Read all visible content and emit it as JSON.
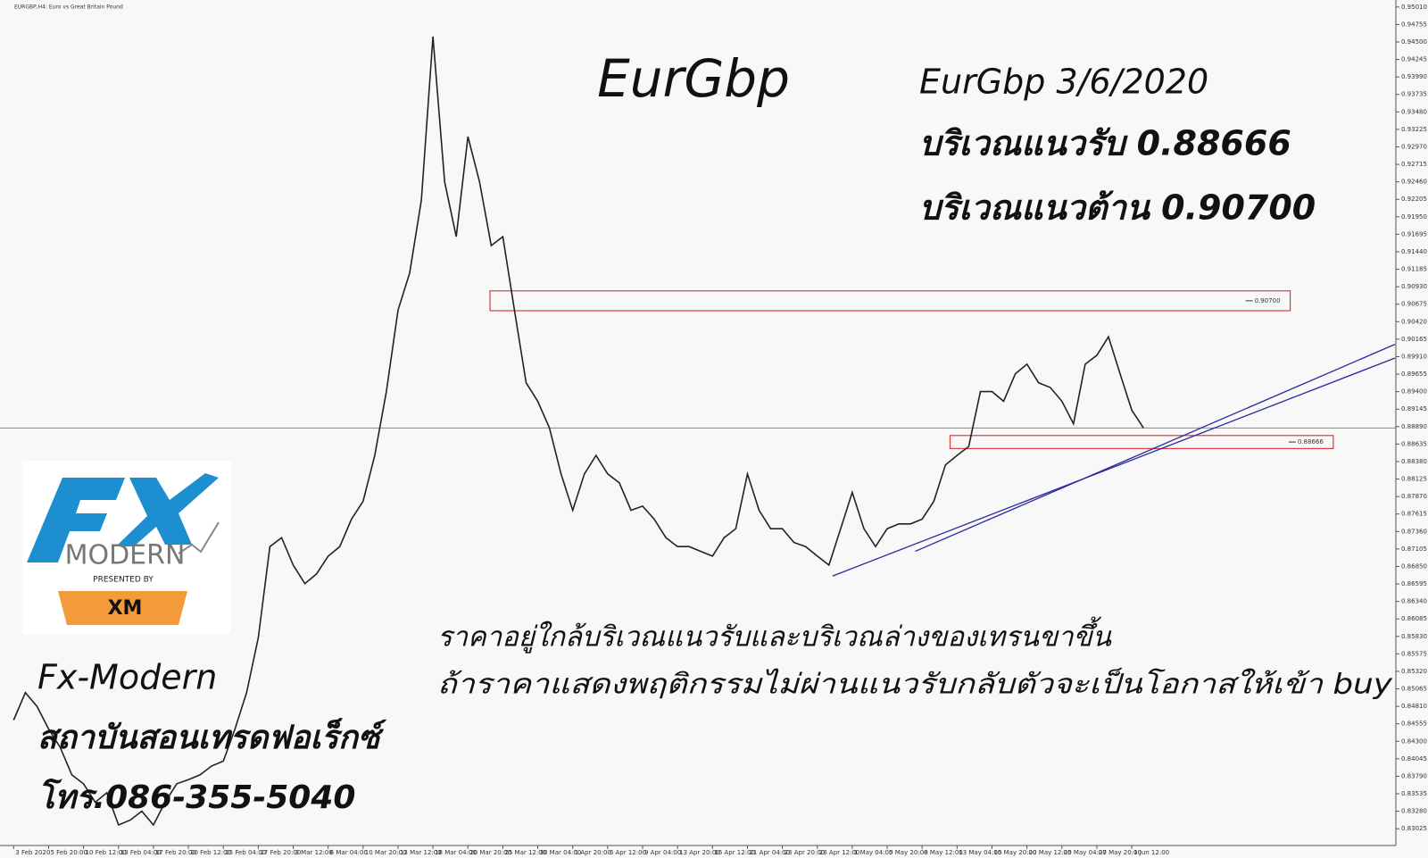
{
  "chart_data": {
    "type": "line",
    "window_caption": "EURGBP,H4: Euro vs Great Britain Pound",
    "title": "EurGbp",
    "info_lines": [
      "EurGbp 3/6/2020",
      "บริเวณแนวรับ 0.88666",
      "บริเวณแนวต้าน 0.90700"
    ],
    "comment_lines": [
      "ราคาอยู่ใกล้บริเวณแนวรับและบริเวณล่างของเทรนขาขึ้น",
      "ถ้าราคาแสดงพฤติกรรมไม่ผ่านแนวรับกลับตัวจะเป็นโอกาสให้เข้า buy"
    ],
    "footer_lines": [
      "Fx-Modern",
      "สถาบันสอนเทรดฟอเร็กซ์",
      "โทร.086-355-5040"
    ],
    "logo": {
      "brand": "MODERN",
      "presented": "PRESENTED BY",
      "sponsor": "XM"
    },
    "color": "#222222",
    "categories": [
      "3 Feb 2020",
      null,
      null,
      "5 Feb 20:00",
      null,
      null,
      "10 Feb 12:00",
      null,
      null,
      "13 Feb 04:00",
      null,
      null,
      "17 Feb 20:00",
      null,
      null,
      "20 Feb 12:00",
      null,
      null,
      "25 Feb 04:00",
      null,
      null,
      "27 Feb 20:00",
      null,
      null,
      "3 Mar 12:00",
      null,
      null,
      "6 Mar 04:00",
      null,
      null,
      "10 Mar 20:00",
      null,
      null,
      "13 Mar 12:00",
      null,
      null,
      "18 Mar 04:00",
      null,
      null,
      "20 Mar 20:00",
      null,
      null,
      "25 Mar 12:00",
      null,
      null,
      "30 Mar 04:00",
      null,
      null,
      "1 Apr 20:00",
      null,
      null,
      "6 Apr 12:00",
      null,
      null,
      "9 Apr 04:00",
      null,
      null,
      "13 Apr 20:00",
      null,
      null,
      "16 Apr 12:00",
      null,
      null,
      "21 Apr 04:00",
      null,
      null,
      "23 Apr 20:00",
      null,
      null,
      "28 Apr 12:00",
      null,
      null,
      "1 May 04:00",
      null,
      null,
      "5 May 20:00",
      null,
      null,
      "8 May 12:00",
      null,
      null,
      "13 May 04:00",
      null,
      null,
      "15 May 20:00",
      null,
      null,
      "20 May 12:00",
      null,
      null,
      "25 May 04:00",
      null,
      null,
      "27 May 20:00",
      null,
      null,
      "1 Jun 12:00",
      null
    ],
    "values": [
      0.8461,
      0.8501,
      0.8481,
      0.8448,
      0.8421,
      0.8381,
      0.8368,
      0.8341,
      0.8355,
      0.8308,
      0.8315,
      0.8328,
      0.8308,
      0.8341,
      0.8368,
      0.8374,
      0.8381,
      0.8394,
      0.8401,
      0.8448,
      0.8501,
      0.8581,
      0.8714,
      0.8727,
      0.8687,
      0.866,
      0.8674,
      0.87,
      0.8714,
      0.8754,
      0.878,
      0.8847,
      0.894,
      0.9059,
      0.9113,
      0.9219,
      0.9458,
      0.9246,
      0.9166,
      0.9312,
      0.9246,
      0.9153,
      0.9166,
      0.9059,
      0.8953,
      0.8926,
      0.8887,
      0.882,
      0.8767,
      0.882,
      0.8847,
      0.882,
      0.8807,
      0.8767,
      0.8773,
      0.8754,
      0.8727,
      0.8714,
      0.8714,
      0.8707,
      0.87,
      0.8727,
      0.874,
      0.882,
      0.8767,
      0.874,
      0.874,
      0.872,
      0.8714,
      0.87,
      0.8687,
      0.874,
      0.8793,
      0.874,
      0.8714,
      0.874,
      0.8747,
      0.8747,
      0.8754,
      0.878,
      0.8833,
      0.8847,
      0.886,
      0.894,
      0.894,
      0.8926,
      0.8966,
      0.898,
      0.8953,
      0.8946,
      0.8926,
      0.8893,
      0.898,
      0.8993,
      0.902,
      0.8966,
      0.8913,
      0.8887
    ],
    "ylim": [
      0.8278,
      0.9506
    ],
    "yticks": [
      {
        "value": 0.9501,
        "label": "0.95010"
      },
      0.94755,
      {
        "value": 0.945,
        "label": "0.94500"
      },
      0.94245,
      {
        "value": 0.9399,
        "label": "0.93990"
      },
      0.93735,
      {
        "value": 0.9348,
        "label": "0.93480"
      },
      0.93225,
      {
        "value": 0.9297,
        "label": "0.92970"
      },
      0.92715,
      {
        "value": 0.9246,
        "label": "0.92460"
      },
      0.92205,
      {
        "value": 0.9195,
        "label": "0.91950"
      },
      0.91695,
      {
        "value": 0.9144,
        "label": "0.91440"
      },
      0.91185,
      {
        "value": 0.9093,
        "label": "0.90930"
      },
      0.90675,
      {
        "value": 0.9042,
        "label": "0.90420"
      },
      0.90165,
      {
        "value": 0.8991,
        "label": "0.89910"
      },
      0.89655,
      {
        "value": 0.894,
        "label": "0.89400"
      },
      0.89145,
      {
        "value": 0.8889,
        "label": "0.88890"
      },
      0.88635,
      {
        "value": 0.8838,
        "label": "0.88380"
      },
      0.88125,
      {
        "value": 0.8787,
        "label": "0.87870"
      },
      0.87615,
      {
        "value": 0.8736,
        "label": "0.87360"
      },
      0.87105,
      {
        "value": 0.8685,
        "label": "0.86850"
      },
      0.86595,
      {
        "value": 0.8634,
        "label": "0.86340"
      },
      0.86085,
      {
        "value": 0.8583,
        "label": "0.85830"
      },
      0.85575,
      {
        "value": 0.8532,
        "label": "0.85320"
      },
      0.85065,
      {
        "value": 0.8481,
        "label": "0.84810"
      },
      0.84555,
      {
        "value": 0.843,
        "label": "0.84300"
      },
      0.84045,
      {
        "value": 0.8379,
        "label": "0.83790"
      },
      0.83535,
      {
        "value": 0.8328,
        "label": "0.83280"
      },
      0.83025
    ],
    "price_line": 0.8887,
    "zones": [
      {
        "label": "0.90700",
        "low": 0.9058,
        "high": 0.9087,
        "x": [
          40.9,
          109.6
        ],
        "color": "#e03a3a"
      },
      {
        "label": "0.88666",
        "low": 0.8857,
        "high": 0.8876,
        "x": [
          80.4,
          113.3
        ],
        "color": "#e03a3a"
      }
    ],
    "trendlines": [
      {
        "x": [
          70.3,
          118.6
        ],
        "y": [
          0.8671,
          0.8989
        ],
        "color": "#2a2a9a"
      },
      {
        "x": [
          77.4,
          118.6
        ],
        "y": [
          0.8707,
          0.9009
        ],
        "color": "#2a2a9a"
      }
    ]
  }
}
